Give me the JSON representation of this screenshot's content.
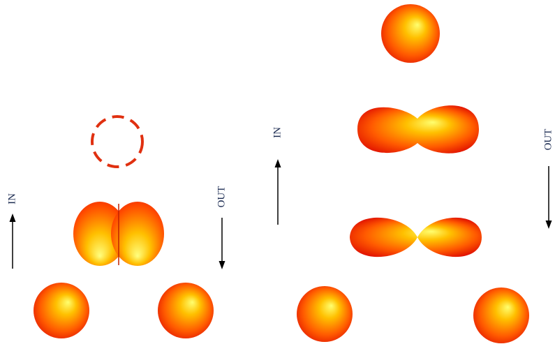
{
  "left_panel": {
    "in_label": "IN",
    "out_label": "OUT"
  },
  "right_panel": {
    "in_label": "IN",
    "out_label": "OUT"
  }
}
